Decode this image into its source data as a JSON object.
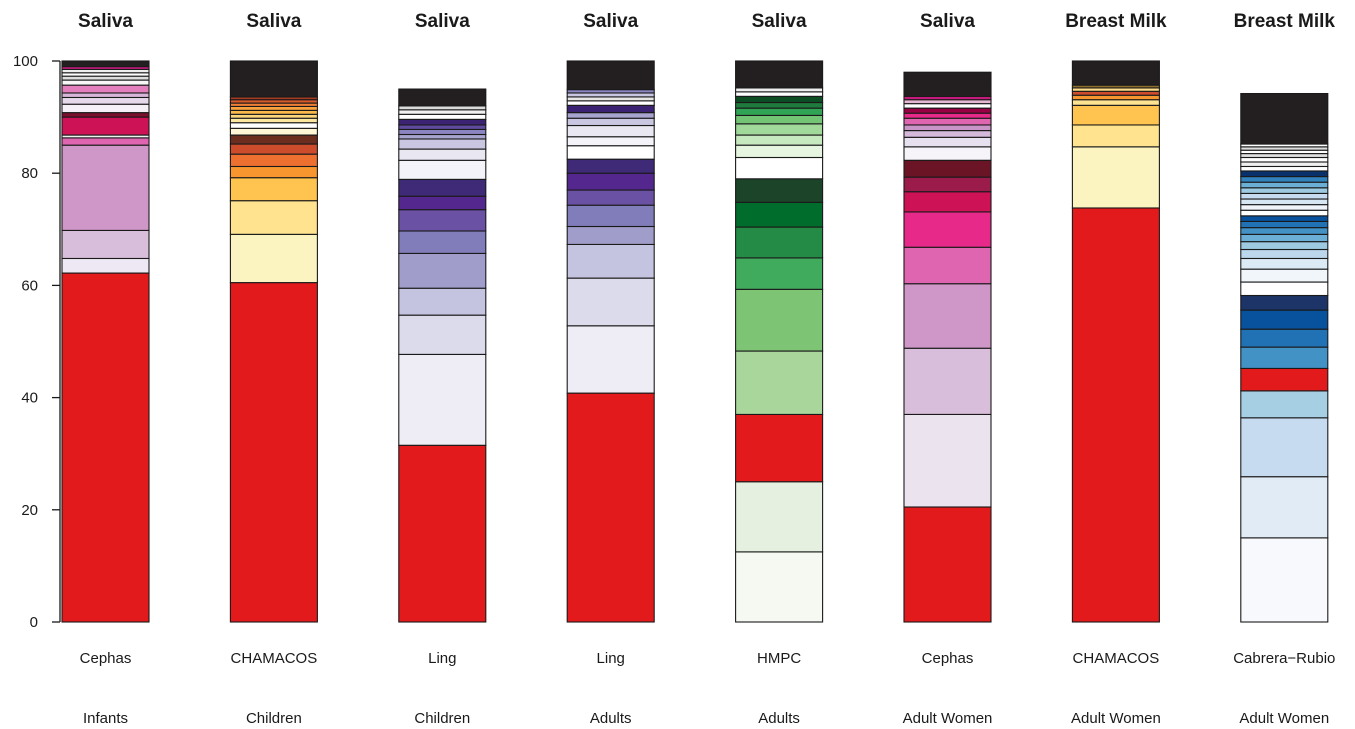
{
  "chart_data": {
    "type": "bar",
    "stacked": true,
    "ylim": [
      0,
      100
    ],
    "yticks": [
      0,
      20,
      40,
      60,
      80,
      100
    ],
    "bars": [
      {
        "title": "Saliva",
        "study": "Cephas",
        "group": "Infants",
        "segments": [
          {
            "value": 62.2,
            "color": "#e31a1c"
          },
          {
            "value": 2.6,
            "color": "#ede8f3"
          },
          {
            "value": 5.0,
            "color": "#d9bedb"
          },
          {
            "value": 15.2,
            "color": "#cf97c7"
          },
          {
            "value": 1.3,
            "color": "#df65b0"
          },
          {
            "value": 0.5,
            "color": "#f2f2f2"
          },
          {
            "value": 3.2,
            "color": "#ce1256"
          },
          {
            "value": 0.8,
            "color": "#7a0f2e"
          },
          {
            "value": 1.5,
            "color": "#f5f0f7"
          },
          {
            "value": 1.2,
            "color": "#e5d8ea"
          },
          {
            "value": 0.8,
            "color": "#d7b5d8"
          },
          {
            "value": 1.4,
            "color": "#e47fbe"
          },
          {
            "value": 0.9,
            "color": "#f7f7f7"
          },
          {
            "value": 0.7,
            "color": "#dddddd"
          },
          {
            "value": 0.6,
            "color": "#ffffff"
          },
          {
            "value": 0.6,
            "color": "#eeeeee"
          },
          {
            "value": 0.5,
            "color": "#c51b7d"
          },
          {
            "value": 1.0,
            "color": "#231f20"
          }
        ]
      },
      {
        "title": "Saliva",
        "study": "CHAMACOS",
        "group": "Children",
        "segments": [
          {
            "value": 60.5,
            "color": "#e31a1c"
          },
          {
            "value": 8.6,
            "color": "#fbf3c0"
          },
          {
            "value": 6.0,
            "color": "#ffe38f"
          },
          {
            "value": 4.1,
            "color": "#fec44f"
          },
          {
            "value": 2.0,
            "color": "#f7962e"
          },
          {
            "value": 2.2,
            "color": "#ed7030"
          },
          {
            "value": 1.8,
            "color": "#cc4c2b"
          },
          {
            "value": 1.6,
            "color": "#6b2d1e"
          },
          {
            "value": 1.2,
            "color": "#fff7d6"
          },
          {
            "value": 1.0,
            "color": "#ffffff"
          },
          {
            "value": 0.8,
            "color": "#fde7a0"
          },
          {
            "value": 0.7,
            "color": "#fdd57a"
          },
          {
            "value": 0.7,
            "color": "#fbb84b"
          },
          {
            "value": 0.7,
            "color": "#f8a13d"
          },
          {
            "value": 0.6,
            "color": "#ef7f36"
          },
          {
            "value": 0.6,
            "color": "#d95a2b"
          },
          {
            "value": 0.5,
            "color": "#a33a22"
          },
          {
            "value": 6.4,
            "color": "#231f20"
          }
        ]
      },
      {
        "title": "Saliva",
        "study": "Ling",
        "group": "Children",
        "segments": [
          {
            "value": 31.5,
            "color": "#e31a1c"
          },
          {
            "value": 16.2,
            "color": "#eeedf5"
          },
          {
            "value": 7.0,
            "color": "#dcdbec"
          },
          {
            "value": 4.8,
            "color": "#c4c3e0"
          },
          {
            "value": 6.2,
            "color": "#a19dcb"
          },
          {
            "value": 4.0,
            "color": "#807dba"
          },
          {
            "value": 3.8,
            "color": "#6a51a3"
          },
          {
            "value": 2.4,
            "color": "#54278f"
          },
          {
            "value": 3.0,
            "color": "#3f2a78"
          },
          {
            "value": 3.4,
            "color": "#f4f3f9"
          },
          {
            "value": 2.0,
            "color": "#e8e7f2"
          },
          {
            "value": 1.8,
            "color": "#c9c6e2"
          },
          {
            "value": 0.8,
            "color": "#a8a4d0"
          },
          {
            "value": 0.9,
            "color": "#8b86c1"
          },
          {
            "value": 0.8,
            "color": "#5f4a9e"
          },
          {
            "value": 1.0,
            "color": "#3b2273"
          },
          {
            "value": 0.9,
            "color": "#ffffff"
          },
          {
            "value": 0.8,
            "color": "#f0f0f0"
          },
          {
            "value": 0.7,
            "color": "#dadada"
          },
          {
            "value": 3.0,
            "color": "#231f20"
          }
        ]
      },
      {
        "title": "Saliva",
        "study": "Ling",
        "group": "Adults",
        "segments": [
          {
            "value": 40.8,
            "color": "#e31a1c"
          },
          {
            "value": 12.0,
            "color": "#eeedf5"
          },
          {
            "value": 8.5,
            "color": "#dcdbec"
          },
          {
            "value": 6.0,
            "color": "#c4c3e0"
          },
          {
            "value": 3.2,
            "color": "#a19dcb"
          },
          {
            "value": 3.8,
            "color": "#807dba"
          },
          {
            "value": 2.7,
            "color": "#6a51a3"
          },
          {
            "value": 3.0,
            "color": "#54278f"
          },
          {
            "value": 2.5,
            "color": "#3f2a78"
          },
          {
            "value": 2.4,
            "color": "#ffffff"
          },
          {
            "value": 1.6,
            "color": "#f4f3f9"
          },
          {
            "value": 2.0,
            "color": "#e8e7f2"
          },
          {
            "value": 1.3,
            "color": "#c9c6e2"
          },
          {
            "value": 1.0,
            "color": "#a8a4d0"
          },
          {
            "value": 1.3,
            "color": "#3b2273"
          },
          {
            "value": 0.8,
            "color": "#ffffff"
          },
          {
            "value": 0.7,
            "color": "#e6e6e6"
          },
          {
            "value": 0.7,
            "color": "#c9c6e2"
          },
          {
            "value": 0.6,
            "color": "#8b86c1"
          },
          {
            "value": 5.1,
            "color": "#231f20"
          }
        ]
      },
      {
        "title": "Saliva",
        "study": "HMPC",
        "group": "Adults",
        "segments": [
          {
            "value": 12.5,
            "color": "#f5f9f2"
          },
          {
            "value": 12.5,
            "color": "#e6f0e0"
          },
          {
            "value": 12.0,
            "color": "#e31a1c"
          },
          {
            "value": 11.3,
            "color": "#a8d69b"
          },
          {
            "value": 11.0,
            "color": "#7dc575"
          },
          {
            "value": 5.6,
            "color": "#41ab5d"
          },
          {
            "value": 5.5,
            "color": "#238b45"
          },
          {
            "value": 4.4,
            "color": "#006d2c"
          },
          {
            "value": 4.2,
            "color": "#1b4429"
          },
          {
            "value": 3.8,
            "color": "#ffffff"
          },
          {
            "value": 2.2,
            "color": "#e5f5e0"
          },
          {
            "value": 1.8,
            "color": "#c7e9c0"
          },
          {
            "value": 2.0,
            "color": "#a1d99b"
          },
          {
            "value": 1.5,
            "color": "#74c476"
          },
          {
            "value": 1.3,
            "color": "#31a354"
          },
          {
            "value": 1.0,
            "color": "#1f7a3d"
          },
          {
            "value": 1.1,
            "color": "#0d4d24"
          },
          {
            "value": 0.8,
            "color": "#ffffff"
          },
          {
            "value": 0.7,
            "color": "#eeeeee"
          },
          {
            "value": 4.8,
            "color": "#231f20"
          }
        ]
      },
      {
        "title": "Saliva",
        "study": "Cephas",
        "group": "Adult Women",
        "segments": [
          {
            "value": 20.5,
            "color": "#e31a1c"
          },
          {
            "value": 16.5,
            "color": "#ebe4ef"
          },
          {
            "value": 11.8,
            "color": "#d9bedb"
          },
          {
            "value": 11.5,
            "color": "#cf97c7"
          },
          {
            "value": 6.5,
            "color": "#df65b0"
          },
          {
            "value": 6.3,
            "color": "#e7298a"
          },
          {
            "value": 3.6,
            "color": "#ce1256"
          },
          {
            "value": 2.6,
            "color": "#9b1c4a"
          },
          {
            "value": 3.0,
            "color": "#6b1426"
          },
          {
            "value": 2.4,
            "color": "#f7f4f9"
          },
          {
            "value": 1.7,
            "color": "#e7e1ef"
          },
          {
            "value": 1.2,
            "color": "#d4b9da"
          },
          {
            "value": 1.0,
            "color": "#c994c7"
          },
          {
            "value": 1.2,
            "color": "#df65b0"
          },
          {
            "value": 0.9,
            "color": "#e7298a"
          },
          {
            "value": 0.9,
            "color": "#980043"
          },
          {
            "value": 0.8,
            "color": "#ffffff"
          },
          {
            "value": 0.7,
            "color": "#e6b8d4"
          },
          {
            "value": 0.6,
            "color": "#c51b7d"
          },
          {
            "value": 4.3,
            "color": "#231f20"
          }
        ]
      },
      {
        "title": "Breast Milk",
        "study": "CHAMACOS",
        "group": "Adult Women",
        "segments": [
          {
            "value": 73.8,
            "color": "#e31a1c"
          },
          {
            "value": 10.9,
            "color": "#fbf3c0"
          },
          {
            "value": 3.9,
            "color": "#ffe38f"
          },
          {
            "value": 3.5,
            "color": "#fec44f"
          },
          {
            "value": 1.0,
            "color": "#fee391"
          },
          {
            "value": 0.8,
            "color": "#f7962e"
          },
          {
            "value": 0.7,
            "color": "#cc4c2b"
          },
          {
            "value": 0.6,
            "color": "#fddc86"
          },
          {
            "value": 0.5,
            "color": "#8c6d2e"
          },
          {
            "value": 4.3,
            "color": "#231f20"
          }
        ]
      },
      {
        "title": "Breast Milk",
        "study": "Cabrera−Rubio",
        "group": "Adult Women",
        "segments": [
          {
            "value": 15.0,
            "color": "#f7f9fc"
          },
          {
            "value": 10.9,
            "color": "#e1ebf5"
          },
          {
            "value": 10.5,
            "color": "#c6dbef"
          },
          {
            "value": 4.8,
            "color": "#a6cfe4"
          },
          {
            "value": 4.0,
            "color": "#e31a1c"
          },
          {
            "value": 3.8,
            "color": "#4292c6"
          },
          {
            "value": 3.2,
            "color": "#2171b5"
          },
          {
            "value": 3.4,
            "color": "#08519c"
          },
          {
            "value": 2.6,
            "color": "#1c3468"
          },
          {
            "value": 2.4,
            "color": "#ffffff"
          },
          {
            "value": 2.3,
            "color": "#f1f6fb"
          },
          {
            "value": 1.9,
            "color": "#dceaf5"
          },
          {
            "value": 1.6,
            "color": "#bcd7ec"
          },
          {
            "value": 1.4,
            "color": "#9ecae1"
          },
          {
            "value": 1.3,
            "color": "#6baed6"
          },
          {
            "value": 1.2,
            "color": "#4292c6"
          },
          {
            "value": 1.1,
            "color": "#2171b5"
          },
          {
            "value": 1.0,
            "color": "#08519c"
          },
          {
            "value": 1.0,
            "color": "#ffffff"
          },
          {
            "value": 1.0,
            "color": "#eef4fa"
          },
          {
            "value": 1.0,
            "color": "#d6e6f3"
          },
          {
            "value": 1.0,
            "color": "#c6dbef"
          },
          {
            "value": 1.0,
            "color": "#9ecae1"
          },
          {
            "value": 1.0,
            "color": "#6baed6"
          },
          {
            "value": 1.0,
            "color": "#3182bd"
          },
          {
            "value": 1.0,
            "color": "#08306b"
          },
          {
            "value": 0.8,
            "color": "#ffffff"
          },
          {
            "value": 0.8,
            "color": "#f0f0f0"
          },
          {
            "value": 0.8,
            "color": "#ffffff"
          },
          {
            "value": 0.7,
            "color": "#e0e0e0"
          },
          {
            "value": 0.6,
            "color": "#ffffff"
          },
          {
            "value": 0.6,
            "color": "#dddddd"
          },
          {
            "value": 0.5,
            "color": "#ffffff"
          },
          {
            "value": 9.0,
            "color": "#231f20"
          }
        ]
      }
    ]
  }
}
